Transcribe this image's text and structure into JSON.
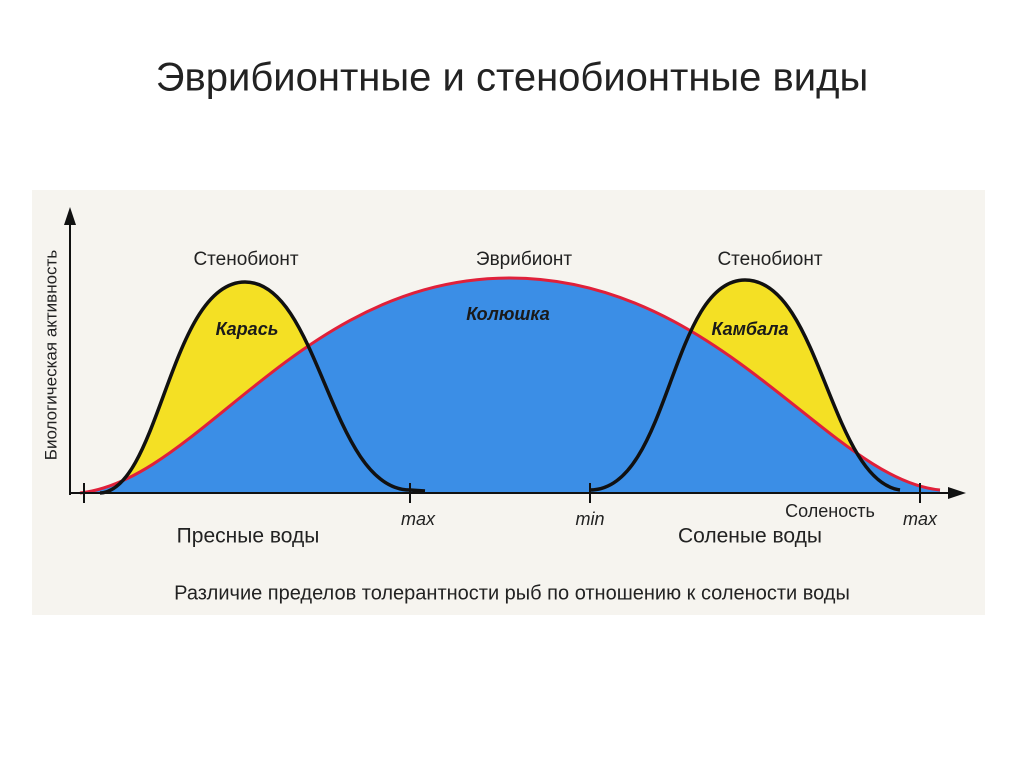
{
  "header": {
    "title": "Эврибионтные и стенобионтные виды"
  },
  "diagram": {
    "y_axis_label": "Биологическая активность",
    "x_axis_label": "Соленость",
    "curves": [
      {
        "type": "Стенобионт",
        "species": "Карась"
      },
      {
        "type": "Эврибионт",
        "species": "Колюшка"
      },
      {
        "type": "Стенобионт",
        "species": "Камбала"
      }
    ],
    "x_marks": [
      "max",
      "min",
      "max"
    ],
    "zones": [
      "Пресные воды",
      "Соленые воды"
    ],
    "caption": "Различие пределов толерантности рыб по отношению к солености воды"
  }
}
